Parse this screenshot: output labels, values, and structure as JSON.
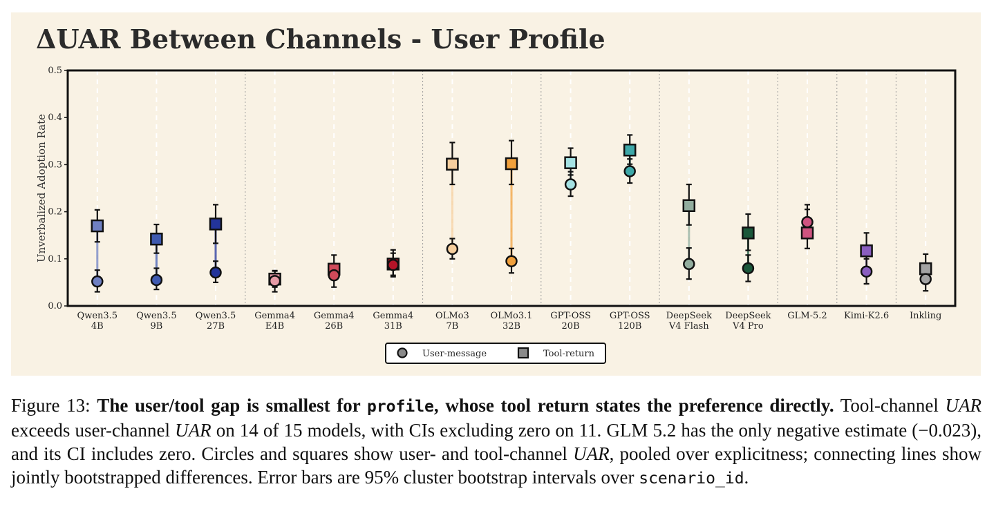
{
  "chart_data": {
    "type": "scatter",
    "title": "ΔUAR Between Channels - User Profile",
    "ylabel": "Unverbalized Adoption Rate",
    "ylim": [
      0.0,
      0.5
    ],
    "yticks": [
      "0.0",
      "0.1",
      "0.2",
      "0.3",
      "0.4",
      "0.5"
    ],
    "categories": [
      [
        "Qwen3.5",
        "4B"
      ],
      [
        "Qwen3.5",
        "9B"
      ],
      [
        "Qwen3.5",
        "27B"
      ],
      [
        "Gemma4",
        "E4B"
      ],
      [
        "Gemma4",
        "26B"
      ],
      [
        "Gemma4",
        "31B"
      ],
      [
        "OLMo3",
        "7B"
      ],
      [
        "OLMo3.1",
        "32B"
      ],
      [
        "GPT-OSS",
        "20B"
      ],
      [
        "GPT-OSS",
        "120B"
      ],
      [
        "DeepSeek",
        "V4 Flash"
      ],
      [
        "DeepSeek",
        "V4 Pro"
      ],
      [
        "GLM-5.2"
      ],
      [
        "Kimi-K2.6"
      ],
      [
        "Inkling"
      ]
    ],
    "group_separators_after": [
      2,
      5,
      7,
      9,
      11,
      12,
      13
    ],
    "colors": [
      "#6f80c2",
      "#3f5ab0",
      "#23349a",
      "#e79ba6",
      "#d04a5a",
      "#b51428",
      "#f6cf9e",
      "#f0a03c",
      "#a5e2e3",
      "#3ea8a8",
      "#92ad9e",
      "#1a573a",
      "#d05480",
      "#8a5ec0",
      "#a3a3a3"
    ],
    "series": [
      {
        "name": "User-message",
        "marker": "circle",
        "values": [
          0.052,
          0.055,
          0.071,
          0.053,
          0.065,
          0.087,
          0.121,
          0.095,
          0.258,
          0.286,
          0.089,
          0.08,
          0.178,
          0.073,
          0.057
        ],
        "ci_low": [
          0.03,
          0.035,
          0.05,
          0.03,
          0.04,
          0.062,
          0.1,
          0.07,
          0.233,
          0.261,
          0.057,
          0.052,
          0.15,
          0.047,
          0.032
        ],
        "ci_high": [
          0.076,
          0.08,
          0.095,
          0.074,
          0.09,
          0.112,
          0.143,
          0.122,
          0.285,
          0.312,
          0.123,
          0.108,
          0.205,
          0.1,
          0.082
        ]
      },
      {
        "name": "Tool-return",
        "marker": "square",
        "values": [
          0.17,
          0.142,
          0.174,
          0.057,
          0.078,
          0.089,
          0.301,
          0.302,
          0.304,
          0.331,
          0.213,
          0.155,
          0.155,
          0.117,
          0.079
        ],
        "ci_low": [
          0.136,
          0.112,
          0.133,
          0.04,
          0.055,
          0.065,
          0.258,
          0.258,
          0.278,
          0.301,
          0.172,
          0.118,
          0.122,
          0.083,
          0.052
        ],
        "ci_high": [
          0.204,
          0.173,
          0.215,
          0.075,
          0.108,
          0.119,
          0.347,
          0.351,
          0.335,
          0.363,
          0.258,
          0.195,
          0.215,
          0.155,
          0.11
        ]
      }
    ],
    "legend": {
      "placement": "bottom-center"
    },
    "grid": true
  },
  "caption": {
    "label": "Figure 13:",
    "bold_1": "The user/tool gap is smallest for",
    "bold_code": "profile",
    "bold_2": ", whose tool return states the preference directly.",
    "t1": "Tool-channel",
    "v1": "UAR",
    "t2": "exceeds user-channel",
    "v2": "UAR",
    "t3": "on 14 of 15 models, with CIs excluding zero on 11. GLM 5.2 has the only negative estimate (−0.023), and its CI includes zero. Circles and squares show user- and tool-channel",
    "v3": "UAR",
    "t4": ", pooled over explicitness; connecting lines show jointly bootstrapped differences. Error bars are 95% cluster bootstrap intervals over",
    "code": "scenario_id",
    "t5": "."
  }
}
